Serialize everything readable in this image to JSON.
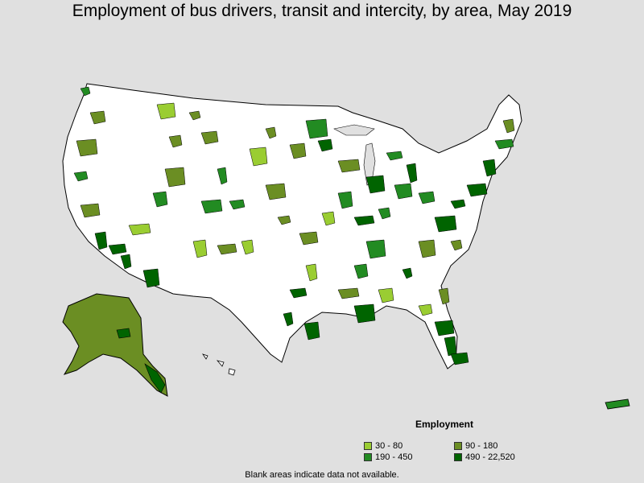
{
  "title": "Employment of bus drivers, transit and intercity, by area, May 2019",
  "legend": {
    "title": "Employment",
    "items": [
      {
        "label": "30 - 80",
        "color": "#9acd32"
      },
      {
        "label": "90 - 180",
        "color": "#6b8e23"
      },
      {
        "label": "190 - 450",
        "color": "#228b22"
      },
      {
        "label": "490 - 22,520",
        "color": "#006400"
      }
    ]
  },
  "footnote": "Blank areas indicate data not available.",
  "colors": {
    "background": "#e0e0e0",
    "land": "#ffffff",
    "border": "#000000"
  }
}
